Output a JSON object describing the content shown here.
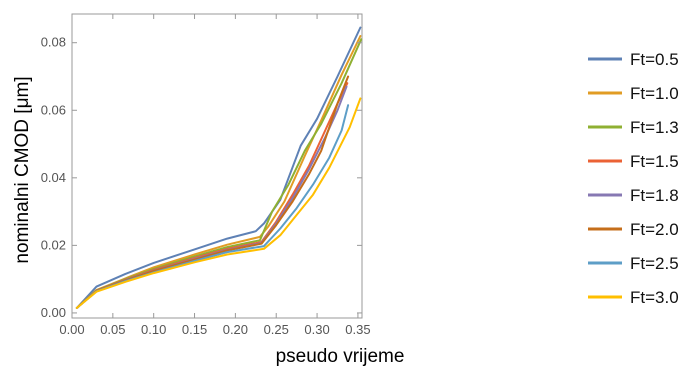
{
  "chart_data": {
    "type": "line",
    "title": "",
    "xlabel": "pseudo vrijeme",
    "ylabel": "nominalni CMOD [μm]",
    "xlim": [
      0.0,
      0.355
    ],
    "ylim": [
      -0.0015,
      0.0885
    ],
    "x_ticks": [
      0.0,
      0.05,
      0.1,
      0.15,
      0.2,
      0.25,
      0.3,
      0.35
    ],
    "x_tick_labels": [
      "0.00",
      "0.05",
      "0.10",
      "0.15",
      "0.20",
      "0.25",
      "0.30",
      "0.35"
    ],
    "y_ticks": [
      0.0,
      0.02,
      0.04,
      0.06,
      0.08
    ],
    "y_tick_labels": [
      "0.00",
      "0.02",
      "0.04",
      "0.06",
      "0.08"
    ],
    "grid": false,
    "legend_position": "right",
    "series": [
      {
        "name": "Ft=0.5",
        "color": "#5E81B5",
        "x": [
          0.006,
          0.03,
          0.065,
          0.1,
          0.15,
          0.19,
          0.225,
          0.235,
          0.255,
          0.28,
          0.3,
          0.325,
          0.353
        ],
        "y": [
          0.0015,
          0.0078,
          0.0115,
          0.0148,
          0.0188,
          0.022,
          0.0242,
          0.0265,
          0.0335,
          0.0495,
          0.0575,
          0.07,
          0.0845
        ]
      },
      {
        "name": "Ft=1.0",
        "color": "#E19C24",
        "x": [
          0.006,
          0.03,
          0.065,
          0.1,
          0.15,
          0.19,
          0.23,
          0.24,
          0.26,
          0.285,
          0.305,
          0.33,
          0.353
        ],
        "y": [
          0.0015,
          0.0068,
          0.0102,
          0.0135,
          0.0173,
          0.0202,
          0.0225,
          0.0255,
          0.033,
          0.0465,
          0.057,
          0.0705,
          0.082
        ]
      },
      {
        "name": "Ft=1.3",
        "color": "#8FB032",
        "x": [
          0.006,
          0.03,
          0.065,
          0.1,
          0.15,
          0.19,
          0.23,
          0.245,
          0.265,
          0.285,
          0.305,
          0.33,
          0.354
        ],
        "y": [
          0.0015,
          0.0067,
          0.01,
          0.013,
          0.0167,
          0.0195,
          0.0215,
          0.03,
          0.038,
          0.048,
          0.056,
          0.068,
          0.081
        ]
      },
      {
        "name": "Ft=1.5",
        "color": "#EB6235",
        "x": [
          0.006,
          0.03,
          0.065,
          0.1,
          0.15,
          0.19,
          0.232,
          0.25,
          0.27,
          0.29,
          0.31,
          0.325,
          0.337
        ],
        "y": [
          0.0015,
          0.0066,
          0.0098,
          0.0127,
          0.0163,
          0.019,
          0.021,
          0.027,
          0.035,
          0.0435,
          0.054,
          0.062,
          0.068
        ]
      },
      {
        "name": "Ft=1.8",
        "color": "#8778B3",
        "x": [
          0.006,
          0.03,
          0.065,
          0.1,
          0.15,
          0.19,
          0.232,
          0.25,
          0.27,
          0.29,
          0.31,
          0.325,
          0.336
        ],
        "y": [
          0.0015,
          0.0065,
          0.0097,
          0.0125,
          0.016,
          0.0187,
          0.0207,
          0.0265,
          0.034,
          0.0425,
          0.052,
          0.06,
          0.067
        ]
      },
      {
        "name": "Ft=2.0",
        "color": "#C56E1A",
        "x": [
          0.006,
          0.03,
          0.065,
          0.1,
          0.15,
          0.19,
          0.232,
          0.25,
          0.27,
          0.29,
          0.305,
          0.325,
          0.338
        ],
        "y": [
          0.0015,
          0.0065,
          0.0096,
          0.0124,
          0.0158,
          0.0185,
          0.0205,
          0.026,
          0.033,
          0.041,
          0.048,
          0.062,
          0.07
        ]
      },
      {
        "name": "Ft=2.5",
        "color": "#5D9EC7",
        "x": [
          0.006,
          0.03,
          0.065,
          0.1,
          0.15,
          0.19,
          0.235,
          0.255,
          0.275,
          0.295,
          0.315,
          0.33,
          0.338
        ],
        "y": [
          0.0015,
          0.0064,
          0.0094,
          0.012,
          0.0154,
          0.018,
          0.0198,
          0.025,
          0.031,
          0.038,
          0.046,
          0.054,
          0.0615
        ]
      },
      {
        "name": "Ft=3.0",
        "color": "#FFBF00",
        "x": [
          0.006,
          0.03,
          0.065,
          0.1,
          0.15,
          0.19,
          0.235,
          0.255,
          0.275,
          0.295,
          0.315,
          0.34,
          0.353
        ],
        "y": [
          0.0015,
          0.0063,
          0.0092,
          0.0118,
          0.015,
          0.0173,
          0.019,
          0.023,
          0.029,
          0.035,
          0.043,
          0.055,
          0.0635
        ]
      }
    ]
  }
}
